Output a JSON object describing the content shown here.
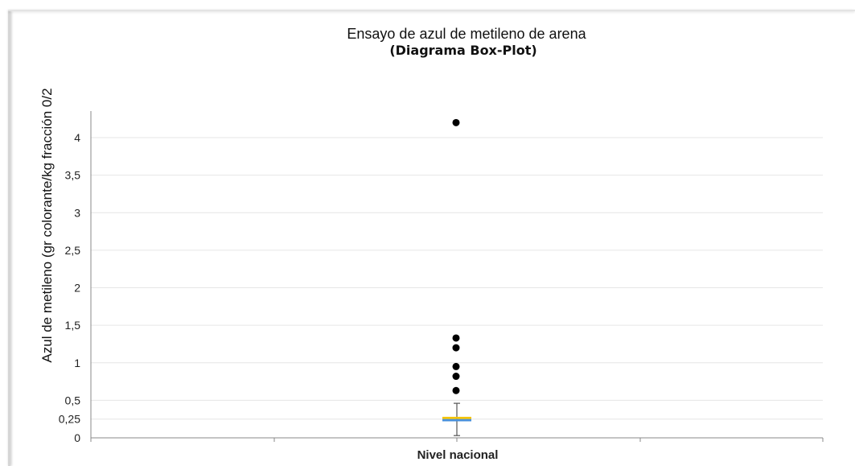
{
  "chart_data": {
    "type": "boxplot",
    "title": "Ensayo de azul de metileno de arena",
    "subtitle": "(Diagrama Box-Plot)",
    "ylabel": "Azul de metileno (gr colorante/kg fracción 0/2",
    "xlabel": "",
    "categories": [
      "Nivel nacional"
    ],
    "yticks": [
      {
        "value": 0,
        "label": "0"
      },
      {
        "value": 0.25,
        "label": "0,25"
      },
      {
        "value": 0.5,
        "label": "0,5"
      },
      {
        "value": 1,
        "label": "1"
      },
      {
        "value": 1.5,
        "label": "1,5"
      },
      {
        "value": 2,
        "label": "2"
      },
      {
        "value": 2.5,
        "label": "2,5"
      },
      {
        "value": 3,
        "label": "3"
      },
      {
        "value": 3.5,
        "label": "3,5"
      },
      {
        "value": 4,
        "label": "4"
      }
    ],
    "ylim": [
      0,
      4.5
    ],
    "grid": true,
    "series": [
      {
        "category": "Nivel nacional",
        "whisker_low": 0.03,
        "q1": 0.22,
        "median": 0.25,
        "q3": 0.28,
        "whisker_high": 0.46,
        "outliers": [
          0.63,
          0.82,
          0.95,
          1.2,
          1.33,
          4.2
        ]
      }
    ],
    "colors": {
      "upper_box": "#f5c400",
      "lower_box": "#4a90d9",
      "outlier": "#000000",
      "whisker": "#555555",
      "grid": "#e6e6e6",
      "axis": "#888888"
    }
  }
}
